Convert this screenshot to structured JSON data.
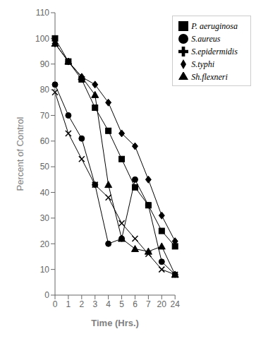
{
  "chart_data": {
    "type": "line",
    "xlabel": "Time (Hrs.)",
    "ylabel": "Percent of Control",
    "categories": [
      "0",
      "1",
      "2",
      "3",
      "4",
      "5",
      "6",
      "7",
      "20",
      "24"
    ],
    "series": [
      {
        "name": "P. aeruginosa",
        "color": "#000000",
        "marker": "square",
        "values": [
          100,
          91,
          84,
          73,
          64,
          53,
          42,
          35,
          25,
          19
        ]
      },
      {
        "name": "S.typhi",
        "color": "#000000",
        "marker": "diamond",
        "values": [
          98,
          91,
          85,
          82,
          75,
          63,
          58,
          45,
          31,
          21
        ]
      },
      {
        "name": "Sh.flexneri",
        "color": "#000000",
        "marker": "triangle",
        "values": [
          98,
          91,
          85,
          78,
          43,
          22,
          18,
          17,
          19,
          8
        ]
      },
      {
        "name": "S.aureus",
        "color": "#000000",
        "marker": "circle",
        "values": [
          82,
          70,
          61,
          43,
          20,
          22,
          45,
          35,
          13,
          8
        ]
      },
      {
        "name": "S.epidermidis",
        "color": "#000000",
        "marker": "x",
        "values": [
          79,
          63,
          53,
          43,
          38,
          28,
          22,
          16,
          10,
          8
        ]
      }
    ],
    "ylim": [
      0,
      110
    ],
    "yticks": [
      0,
      10,
      20,
      30,
      40,
      50,
      60,
      70,
      80,
      90,
      100,
      110
    ],
    "grid": false,
    "legend": "upper right"
  }
}
